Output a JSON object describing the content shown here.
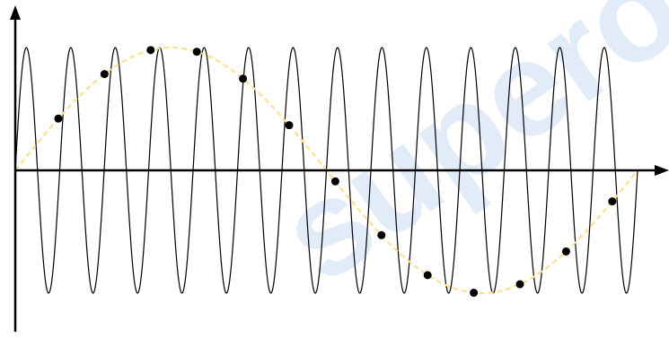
{
  "watermark": {
    "text": "superomc",
    "color": "#1f6fd1"
  },
  "diagram": {
    "description_free": true,
    "carrier_wave": {
      "cycles": 14,
      "amplitude": 1.0,
      "stroke": "#000000"
    },
    "sampled_wave": {
      "cycles": 1,
      "amplitude": 1.0,
      "stroke": "#ffe08a",
      "dashed": true
    },
    "sample_points": {
      "count": 13,
      "positions": [
        0.5,
        1.5,
        2.5,
        3.5,
        4.5,
        5.5,
        6.5,
        7.5,
        8.5,
        9.5,
        10.5,
        11.5,
        12.5
      ],
      "period_units": 14,
      "fill": "#000000"
    },
    "colors": {
      "axis": "#000000",
      "dashed_curve": "#ffe08a",
      "background": "#ffffff"
    }
  }
}
